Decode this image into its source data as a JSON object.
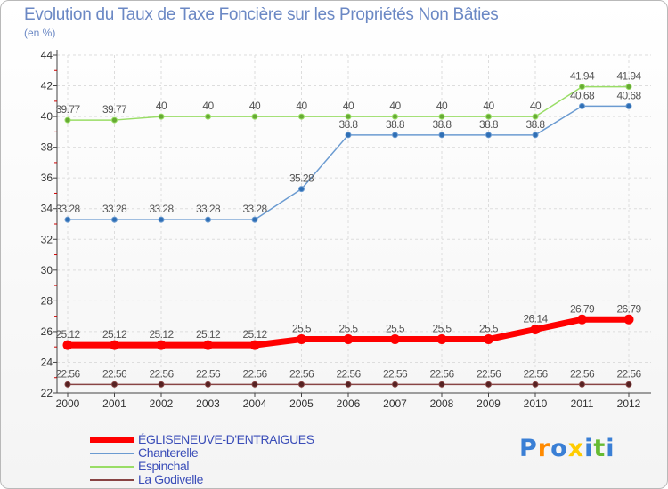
{
  "header": {
    "title": "Evolution du Taux de Taxe Foncière sur les Propriétés Non Bâties",
    "unit": "(en %)"
  },
  "chart_data": {
    "type": "line",
    "title": "Evolution du Taux de Taxe Foncière sur les Propriétés Non Bâties",
    "ylabel": "(en %)",
    "xlabel": "",
    "x": [
      "2000",
      "2001",
      "2002",
      "2003",
      "2004",
      "2005",
      "2006",
      "2007",
      "2008",
      "2009",
      "2010",
      "2011",
      "2012"
    ],
    "ylim": [
      22,
      44
    ],
    "yticks": [
      "22",
      "24",
      "26",
      "28",
      "30",
      "32",
      "34",
      "36",
      "38",
      "40",
      "42",
      "44"
    ],
    "grid": true,
    "legend_position": "bottom-left",
    "series": [
      {
        "name": "ÉGLISENEUVE-D'ENTRAIGUES",
        "color": "#ff0000",
        "values": [
          25.12,
          25.12,
          25.12,
          25.12,
          25.12,
          25.5,
          25.5,
          25.5,
          25.5,
          25.5,
          26.14,
          26.79,
          26.79
        ],
        "labels": [
          "25.12",
          "25.12",
          "25.12",
          "25.12",
          "25.12",
          "25.5",
          "25.5",
          "25.5",
          "25.5",
          "25.5",
          "26.14",
          "26.79",
          "26.79"
        ]
      },
      {
        "name": "Chanterelle",
        "color": "#6b9bd1",
        "values": [
          33.28,
          33.28,
          33.28,
          33.28,
          33.28,
          35.28,
          38.8,
          38.8,
          38.8,
          38.8,
          38.8,
          40.68,
          40.68
        ],
        "labels": [
          "33.28",
          "33.28",
          "33.28",
          "33.28",
          "33.28",
          "35.28",
          "38.8",
          "38.8",
          "38.8",
          "38.8",
          "38.8",
          "40.68",
          "40.68"
        ]
      },
      {
        "name": "Espinchal",
        "color": "#99dd66",
        "values": [
          39.77,
          39.77,
          40,
          40,
          40,
          40,
          40,
          40,
          40,
          40,
          40,
          41.94,
          41.94
        ],
        "labels": [
          "39.77",
          "39.77",
          "40",
          "40",
          "40",
          "40",
          "40",
          "40",
          "40",
          "40",
          "40",
          "41.94",
          "41.94"
        ]
      },
      {
        "name": "La Godivelle",
        "color": "#884444",
        "values": [
          22.56,
          22.56,
          22.56,
          22.56,
          22.56,
          22.56,
          22.56,
          22.56,
          22.56,
          22.56,
          22.56,
          22.56,
          22.56
        ],
        "labels": [
          "22.56",
          "22.56",
          "22.56",
          "22.56",
          "22.56",
          "22.56",
          "22.56",
          "22.56",
          "22.56",
          "22.56",
          "22.56",
          "22.56",
          "22.56"
        ]
      }
    ]
  },
  "brand": {
    "logo_text": "Proxiti",
    "colors": [
      "#3a7fd5",
      "#ff8a00",
      "#3a7fd5",
      "#ffcc00",
      "#3a7fd5",
      "#66bb33",
      "#3a7fd5"
    ]
  }
}
